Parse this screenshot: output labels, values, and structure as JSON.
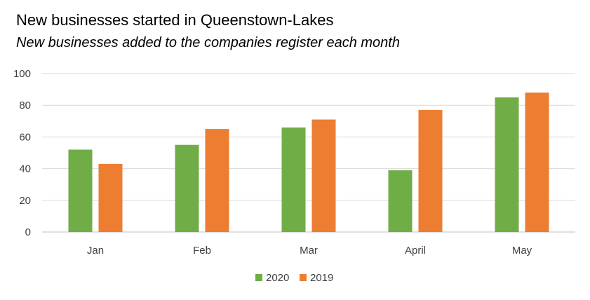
{
  "chart_data": {
    "type": "bar",
    "title": "New businesses started in Queenstown-Lakes",
    "subtitle": "New businesses added to the companies register each month",
    "categories": [
      "Jan",
      "Feb",
      "Mar",
      "April",
      "May"
    ],
    "series": [
      {
        "name": "2020",
        "color": "#70ad47",
        "values": [
          52,
          55,
          66,
          39,
          85
        ]
      },
      {
        "name": "2019",
        "color": "#ed7d31",
        "values": [
          43,
          65,
          71,
          77,
          88
        ]
      }
    ],
    "ylim": [
      0,
      100
    ],
    "yticks": [
      0,
      20,
      40,
      60,
      80,
      100
    ],
    "grid": true,
    "legend": "bottom"
  }
}
